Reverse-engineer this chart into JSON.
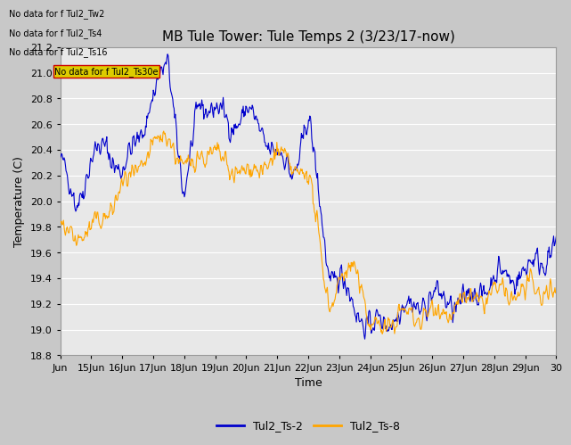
{
  "title": "MB Tule Tower: Tule Temps 2 (3/23/17-now)",
  "xlabel": "Time",
  "ylabel": "Temperature (C)",
  "ylim": [
    18.8,
    21.2
  ],
  "yticks": [
    18.8,
    19.0,
    19.2,
    19.4,
    19.6,
    19.8,
    20.0,
    20.2,
    20.4,
    20.6,
    20.8,
    21.0,
    21.2
  ],
  "xtick_labels": [
    "Jun",
    "15Jun",
    "16Jun",
    "17Jun",
    "18Jun",
    "19Jun",
    "20Jun",
    "21Jun",
    "22Jun",
    "23Jun",
    "24Jun",
    "25Jun",
    "26Jun",
    "27Jun",
    "28Jun",
    "29Jun",
    "30"
  ],
  "legend_entries": [
    "Tul2_Ts-2",
    "Tul2_Ts-8"
  ],
  "color_blue": "#0000cc",
  "color_orange": "#ffa500",
  "fig_bg_color": "#c8c8c8",
  "plot_bg_color": "#e8e8e8",
  "no_data_text": [
    "No data for f Tul2_Tw2",
    "No data for f Tul2_Ts4",
    "No data for f Tul2_Ts16",
    "No data for f Tul2_Ts30e"
  ],
  "title_fontsize": 11,
  "axis_label_fontsize": 9,
  "tick_fontsize": 8
}
